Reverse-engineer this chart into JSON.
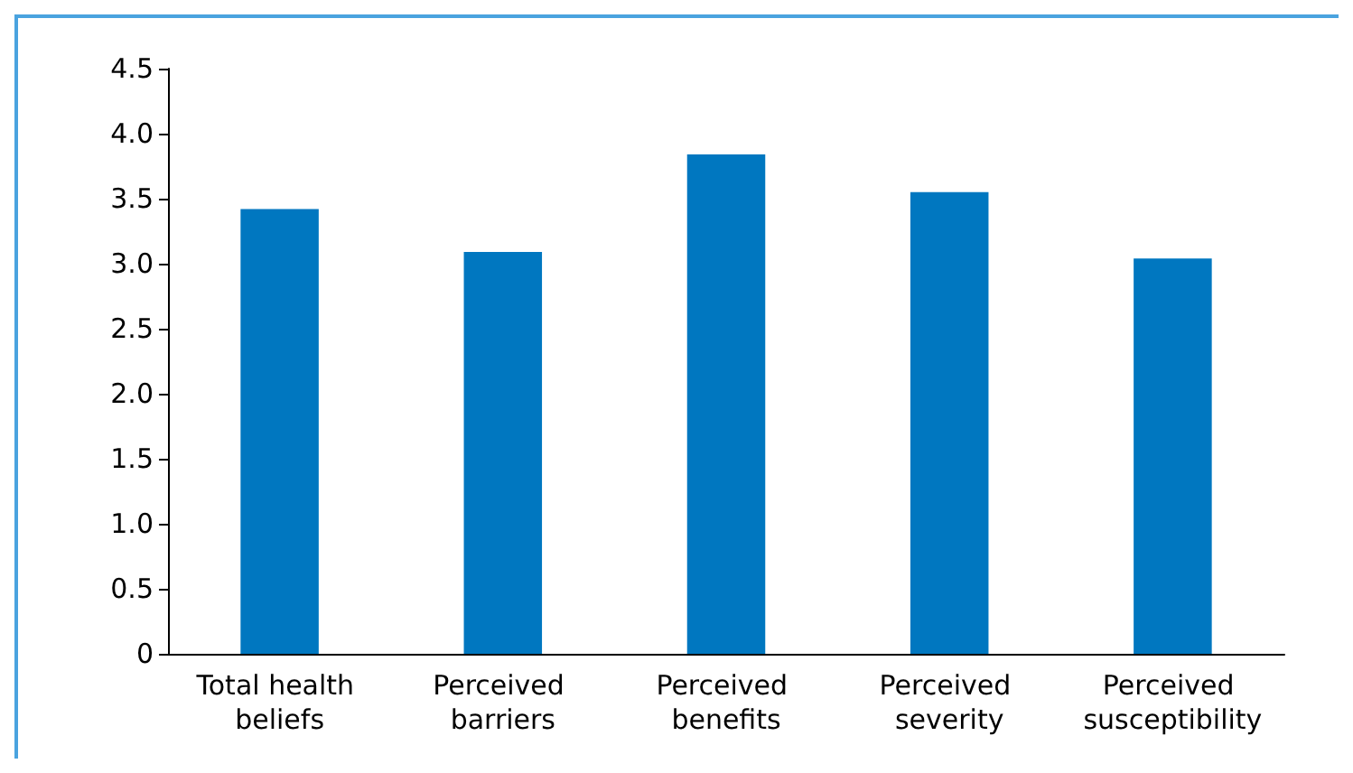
{
  "chart_data": {
    "type": "bar",
    "categories": [
      "Total health beliefs",
      "Perceived barriers",
      "Perceived benefits",
      "Perceived severity",
      "Perceived susceptibility"
    ],
    "values": [
      3.42,
      3.09,
      3.84,
      3.55,
      3.04
    ],
    "color": "#0077c0",
    "ylim": [
      0,
      4.5
    ],
    "yticks": [
      0,
      {
        "value": 0.5,
        "label": "0.5"
      },
      {
        "value": 1,
        "label": "1.0"
      },
      {
        "value": 1.5,
        "label": "1.5"
      },
      {
        "value": 2,
        "label": "2.0"
      },
      {
        "value": 2.5,
        "label": "2.5"
      },
      {
        "value": 3,
        "label": "3.0"
      },
      {
        "value": 3.5,
        "label": "3.5"
      },
      {
        "value": 4,
        "label": "4.0"
      },
      {
        "value": 4.5,
        "label": "4.5"
      }
    ],
    "grid": false
  }
}
